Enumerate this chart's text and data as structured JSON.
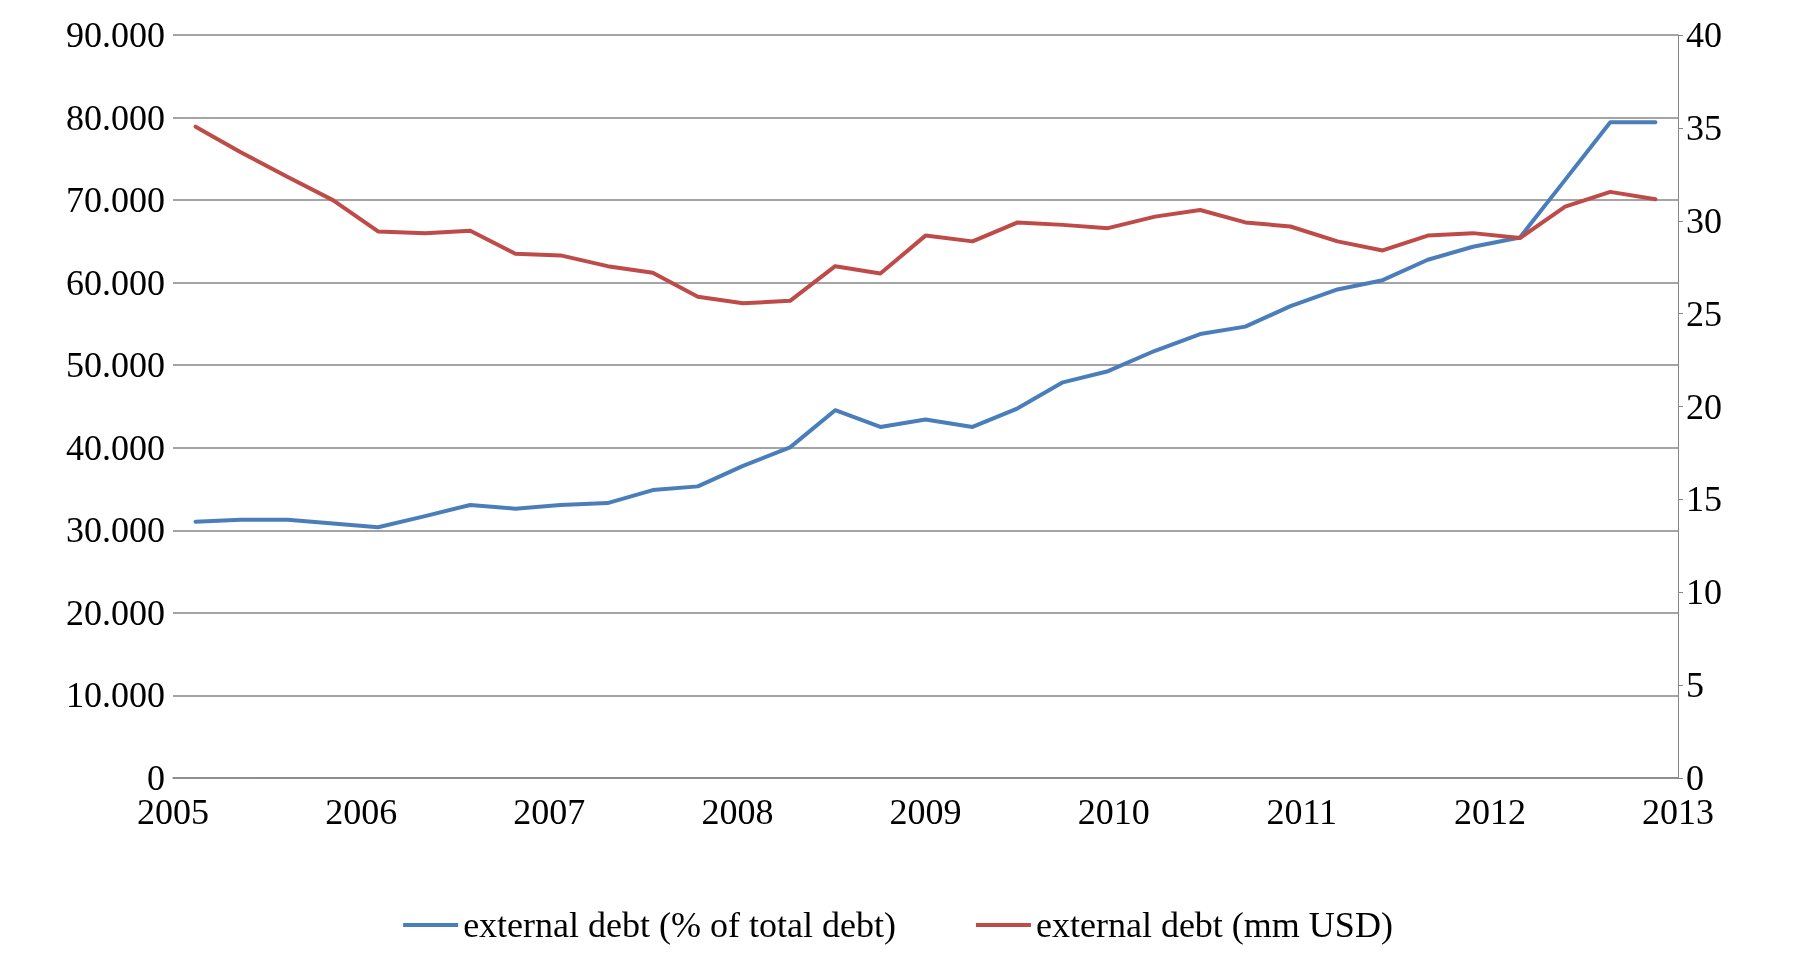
{
  "chart_data": {
    "type": "line",
    "x": [
      2005.12,
      2005.36,
      2005.61,
      2005.85,
      2006.09,
      2006.34,
      2006.58,
      2006.82,
      2007.06,
      2007.31,
      2007.55,
      2007.79,
      2008.03,
      2008.28,
      2008.52,
      2008.76,
      2009.0,
      2009.25,
      2009.49,
      2009.73,
      2009.97,
      2010.22,
      2010.46,
      2010.7,
      2010.94,
      2011.19,
      2011.43,
      2011.67,
      2011.91,
      2012.16,
      2012.4,
      2012.64,
      2012.88
    ],
    "series": [
      {
        "name": "external debt (% of total debt)",
        "color": "#4a7ebb",
        "axis": "y2",
        "values": [
          13.8,
          13.9,
          13.9,
          13.7,
          13.5,
          14.1,
          14.7,
          14.5,
          14.7,
          14.8,
          15.5,
          15.7,
          16.8,
          17.8,
          19.8,
          18.9,
          19.3,
          18.9,
          19.9,
          21.3,
          21.9,
          23.0,
          23.9,
          24.3,
          25.4,
          26.3,
          26.8,
          27.9,
          28.6,
          29.1,
          32.2,
          35.3,
          35.3
        ]
      },
      {
        "name": "external debt (mm USD)",
        "color": "#be4b48",
        "values": [
          78900,
          75800,
          72800,
          70000,
          66200,
          66000,
          66300,
          63500,
          63300,
          62000,
          61200,
          58300,
          57500,
          57800,
          62000,
          61100,
          65700,
          65000,
          67300,
          67000,
          66600,
          68000,
          68800,
          67300,
          66800,
          65000,
          63900,
          65700,
          66000,
          65400,
          69200,
          71000,
          70100
        ]
      }
    ],
    "xlim": [
      2005,
      2013
    ],
    "xticks": [
      2005,
      2006,
      2007,
      2008,
      2009,
      2010,
      2011,
      2012,
      2013
    ],
    "ylim": [
      0,
      90000
    ],
    "yticks": [
      0,
      {
        "value": 10000,
        "label": "10.000"
      },
      {
        "value": 20000,
        "label": "20.000"
      },
      {
        "value": 30000,
        "label": "30.000"
      },
      {
        "value": 40000,
        "label": "40.000"
      },
      {
        "value": 50000,
        "label": "50.000"
      },
      {
        "value": 60000,
        "label": "60.000"
      },
      {
        "value": 70000,
        "label": "70.000"
      },
      {
        "value": 80000,
        "label": "80.000"
      },
      {
        "value": 90000,
        "label": "90.000"
      }
    ],
    "y2lim": [
      0,
      40
    ],
    "y2ticks": [
      0,
      5,
      10,
      15,
      20,
      25,
      30,
      35,
      40
    ],
    "grid": "y",
    "legend": "bottom",
    "marker": "none",
    "line_style": "solid"
  }
}
